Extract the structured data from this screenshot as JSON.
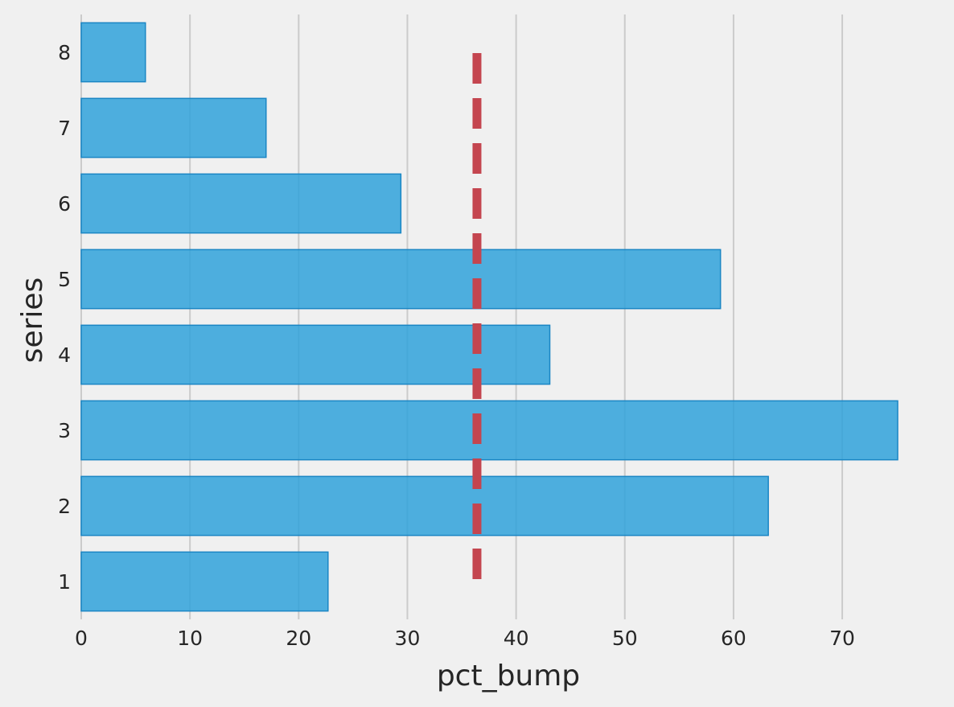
{
  "chart_data": {
    "type": "bar",
    "orientation": "horizontal",
    "title": "",
    "xlabel": "pct_bump",
    "ylabel": "series",
    "categories": [
      "1",
      "2",
      "3",
      "4",
      "5",
      "6",
      "7",
      "8"
    ],
    "values": [
      22.7,
      63.2,
      75.1,
      43.1,
      58.8,
      29.4,
      17.0,
      5.9
    ],
    "xlim": [
      0,
      75.1
    ],
    "xticks": [
      0,
      10,
      20,
      30,
      40,
      50,
      60,
      70
    ],
    "reference_line": {
      "orientation": "vertical",
      "value": 36.4,
      "style": "dashed"
    },
    "grid": "vertical",
    "legend": "none",
    "colors": {
      "background": "#f0f0f0",
      "bar_fill": "#30a2da",
      "bar_edge": "#1a86c4",
      "reference_line": "#c4454f",
      "grid": "#cbcbcb",
      "text": "#262626"
    }
  }
}
